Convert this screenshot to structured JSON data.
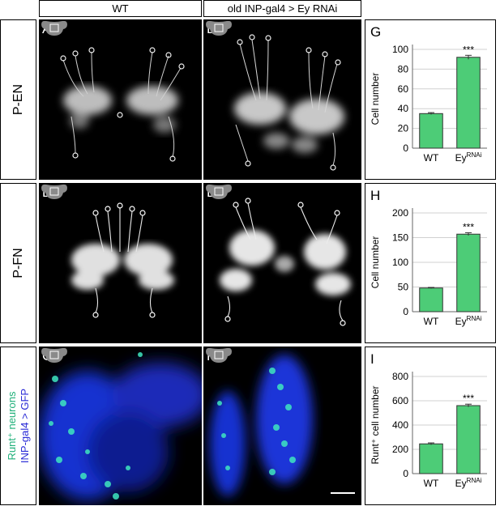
{
  "headers": {
    "wt": "WT",
    "mutant": "old INP-gal4 > Ey RNAi"
  },
  "rows": {
    "pen": "P-EN",
    "pfn": "P-FN",
    "runt_line1": "Runt⁺ neurons",
    "runt_line2": "INP-gal4 > GFP"
  },
  "colors": {
    "bar": "#4dcc77",
    "runt_label": "#1fb07a",
    "gfp_label": "#2a2bd6",
    "gfp": "#1230d0",
    "runt": "#3fe6c0"
  },
  "panels": {
    "A": "A",
    "B": "B",
    "C": "C",
    "D": "D",
    "E": "E",
    "F": "F"
  },
  "icons": [
    "brain-outline-icon"
  ],
  "chart_data": [
    {
      "panel": "G",
      "type": "bar",
      "categories": [
        "WT",
        "Ey"
      ],
      "category_superscripts": [
        "",
        "RNAi"
      ],
      "values": [
        35,
        92
      ],
      "errors": [
        1,
        2
      ],
      "ylabel": "Cell number",
      "ylim": [
        0,
        100
      ],
      "yticks": [
        0,
        20,
        40,
        60,
        80,
        100
      ],
      "significance": "***",
      "grid": true
    },
    {
      "panel": "H",
      "type": "bar",
      "categories": [
        "WT",
        "Ey"
      ],
      "category_superscripts": [
        "",
        "RNAi"
      ],
      "values": [
        48,
        157
      ],
      "errors": [
        1,
        3
      ],
      "ylabel": "Cell number",
      "ylim": [
        0,
        200
      ],
      "yticks": [
        0,
        50,
        100,
        150,
        200
      ],
      "significance": "***",
      "grid": true
    },
    {
      "panel": "I",
      "type": "bar",
      "categories": [
        "WT",
        "Ey"
      ],
      "category_superscripts": [
        "",
        "RNAi"
      ],
      "values": [
        245,
        560
      ],
      "errors": [
        8,
        12
      ],
      "ylabel": "Runt⁺ cell number",
      "ylim": [
        0,
        800
      ],
      "yticks": [
        0,
        200,
        400,
        600,
        800
      ],
      "significance": "***",
      "grid": true
    }
  ]
}
